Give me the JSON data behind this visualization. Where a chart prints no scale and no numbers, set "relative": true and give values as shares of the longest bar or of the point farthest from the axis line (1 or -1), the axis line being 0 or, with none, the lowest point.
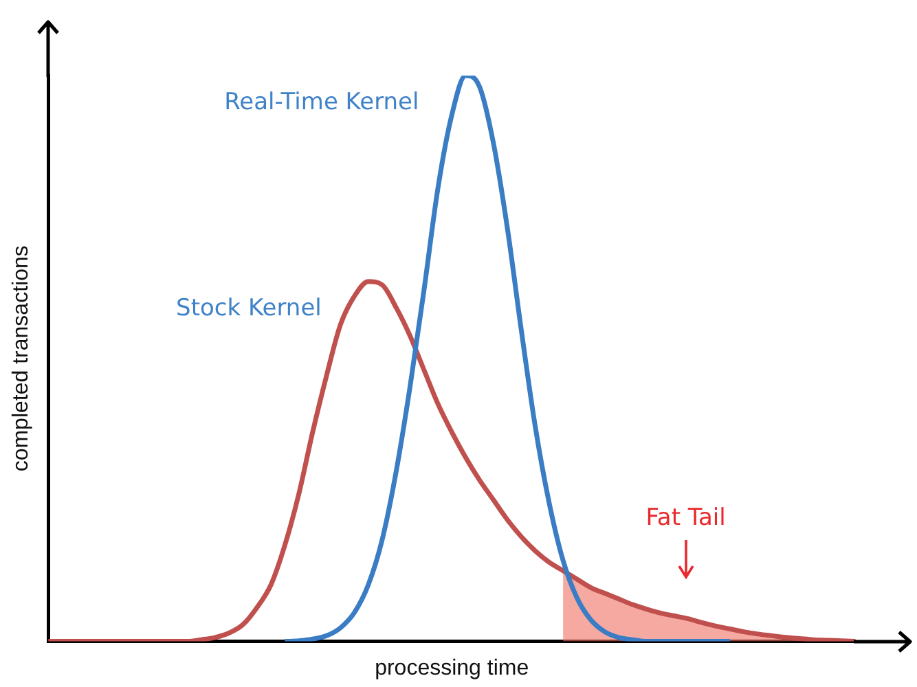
{
  "chart_data": {
    "type": "line",
    "relative": true,
    "xlabel": "processing time",
    "ylabel": "completed transactions",
    "grid": false,
    "legend": false,
    "marker": "none",
    "line_style": "solid",
    "categories": [
      null,
      null,
      null,
      null,
      null,
      null,
      null,
      null,
      null,
      null,
      null,
      null,
      null,
      null,
      null,
      null,
      null,
      null,
      null,
      null,
      null,
      null,
      null,
      null,
      null,
      null,
      null,
      null,
      null,
      null,
      null,
      null,
      null,
      null,
      null,
      null,
      null,
      null,
      null,
      null,
      null,
      null,
      null,
      null,
      null,
      null,
      null,
      null,
      null,
      null,
      null,
      null,
      null,
      null,
      null,
      null,
      null,
      null,
      null
    ],
    "series": [
      {
        "name": "Real-Time Kernel",
        "color": "#3a7dc4",
        "values": [
          null,
          null,
          null,
          null,
          null,
          null,
          null,
          null,
          null,
          null,
          null,
          null,
          null,
          null,
          null,
          null,
          null,
          0,
          0.001,
          0.004,
          0.01,
          0.024,
          0.051,
          0.1,
          0.18,
          0.3,
          0.45,
          0.62,
          0.8,
          0.93,
          1,
          0.98,
          0.88,
          0.73,
          0.55,
          0.38,
          0.245,
          0.143,
          0.077,
          0.038,
          0.017,
          0.007,
          0.003,
          0,
          0,
          0,
          0,
          0,
          0,
          0,
          null,
          null,
          null,
          null,
          null,
          null,
          null,
          null,
          null
        ]
      },
      {
        "name": "Stock Kernel",
        "color": "#c0504d",
        "values": [
          0,
          0,
          0,
          0,
          0,
          0,
          0,
          0,
          0,
          0,
          0,
          0.003,
          0.007,
          0.015,
          0.03,
          0.06,
          0.1,
          0.17,
          0.26,
          0.37,
          0.47,
          0.56,
          0.61,
          0.636,
          0.63,
          0.59,
          0.54,
          0.48,
          0.42,
          0.37,
          0.325,
          0.285,
          0.25,
          0.215,
          0.185,
          0.16,
          0.14,
          0.125,
          0.11,
          0.095,
          0.085,
          0.075,
          0.065,
          0.057,
          0.05,
          0.045,
          0.04,
          0.033,
          0.027,
          0.022,
          0.017,
          0.013,
          0.01,
          0.007,
          0.005,
          0.003,
          0.002,
          0.001,
          0
        ]
      },
      {
        "type": "area",
        "color": "#f07060",
        "values": [
          null,
          null,
          null,
          null,
          null,
          null,
          null,
          null,
          null,
          null,
          null,
          null,
          null,
          null,
          null,
          null,
          null,
          null,
          null,
          null,
          null,
          null,
          null,
          null,
          null,
          null,
          null,
          null,
          null,
          null,
          null,
          null,
          null,
          null,
          null,
          null,
          null,
          0.125,
          0.11,
          0.095,
          0.085,
          0.075,
          0.065,
          0.057,
          0.05,
          0.045,
          0.04,
          0.033,
          0.027,
          0.022,
          0.017,
          0.013,
          0.01,
          0.007,
          0.005,
          0.003,
          0.002,
          0.001,
          0
        ]
      }
    ],
    "annotations": [
      "Fat Tail"
    ]
  }
}
